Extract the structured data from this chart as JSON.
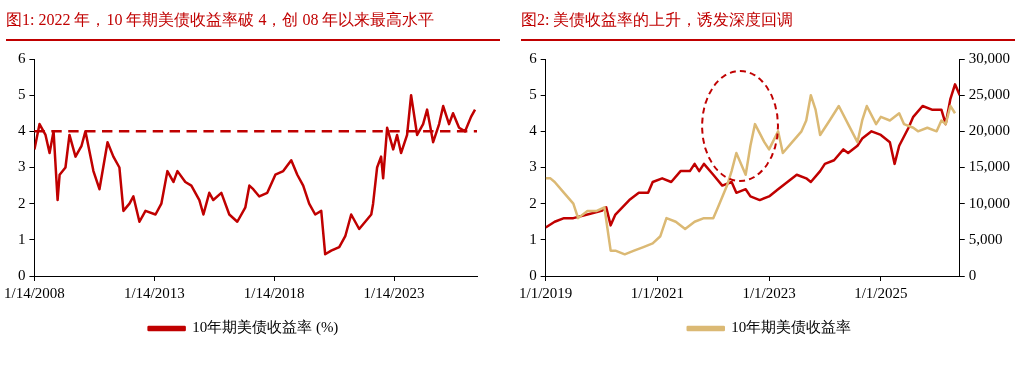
{
  "chart_data": [
    {
      "type": "line",
      "title": "图1:  2022 年，10 年期美债收益率破 4，创 08 年以来最高水平",
      "xlim": [
        "2008-01-14",
        "2026-07-01"
      ],
      "xticks": [
        {
          "value": "2008-01-14",
          "label": "1/14/2008"
        },
        {
          "value": "2013-01-14",
          "label": "1/14/2013"
        },
        {
          "value": "2018-01-14",
          "label": "1/14/2018"
        },
        {
          "value": "2023-01-14",
          "label": "1/14/2023"
        }
      ],
      "ylim": [
        0,
        6
      ],
      "yticks": [
        0,
        1,
        2,
        3,
        4,
        5,
        6
      ],
      "grid": false,
      "legend": "bottom",
      "marker": "none",
      "ref_lines": [
        {
          "axis": "y",
          "value": 4,
          "color": "#c00000",
          "line_style": "dashed"
        }
      ],
      "series": [
        {
          "name": "10年期美债收益率 (%)",
          "color": "#c00000",
          "x": [
            "2008-01-14",
            "2008-04",
            "2008-07",
            "2008-09",
            "2008-11",
            "2009-01",
            "2009-02",
            "2009-05",
            "2009-07",
            "2009-10",
            "2010-01",
            "2010-03",
            "2010-07",
            "2010-10",
            "2011-02",
            "2011-05",
            "2011-08",
            "2011-10",
            "2012-01",
            "2012-03",
            "2012-06",
            "2012-09",
            "2013-02",
            "2013-05",
            "2013-08",
            "2013-11",
            "2014-01",
            "2014-05",
            "2014-08",
            "2014-12",
            "2015-02",
            "2015-05",
            "2015-07",
            "2015-11",
            "2016-03",
            "2016-07",
            "2016-11",
            "2017-01",
            "2017-03",
            "2017-06",
            "2017-10",
            "2018-02",
            "2018-06",
            "2018-10",
            "2019-01",
            "2019-04",
            "2019-07",
            "2019-10",
            "2020-01",
            "2020-03",
            "2020-06",
            "2020-10",
            "2021-01",
            "2021-04",
            "2021-08",
            "2021-11",
            "2022-02",
            "2022-03",
            "2022-05",
            "2022-07",
            "2022-08",
            "2022-10",
            "2023-01",
            "2023-03",
            "2023-05",
            "2023-08",
            "2023-10",
            "2024-01",
            "2024-04",
            "2024-06",
            "2024-09",
            "2024-12",
            "2025-02",
            "2025-05",
            "2025-07",
            "2025-10",
            "2026-01",
            "2026-04",
            "2026-06"
          ],
          "values": [
            3.5,
            4.2,
            3.9,
            3.4,
            4.0,
            2.1,
            2.8,
            3.0,
            3.9,
            3.3,
            3.6,
            4.0,
            2.9,
            2.4,
            3.7,
            3.3,
            3.0,
            1.8,
            2.0,
            2.2,
            1.5,
            1.8,
            1.7,
            2.0,
            2.9,
            2.6,
            2.9,
            2.6,
            2.5,
            2.1,
            1.7,
            2.3,
            2.1,
            2.3,
            1.7,
            1.5,
            1.9,
            2.5,
            2.4,
            2.2,
            2.3,
            2.8,
            2.9,
            3.2,
            2.8,
            2.5,
            2.0,
            1.7,
            1.8,
            0.6,
            0.7,
            0.8,
            1.1,
            1.7,
            1.3,
            1.5,
            1.7,
            2.0,
            3.0,
            3.3,
            2.7,
            4.1,
            3.5,
            3.9,
            3.4,
            3.9,
            5.0,
            3.9,
            4.2,
            4.6,
            3.7,
            4.2,
            4.7,
            4.2,
            4.5,
            4.1,
            4.0,
            4.4,
            4.6
          ]
        }
      ]
    },
    {
      "type": "line",
      "title": "图2:  美债收益率的上升，诱发深度回调",
      "xlim": [
        "2019-01-01",
        "2026-06-01"
      ],
      "xticks": [
        {
          "value": "2019-01-01",
          "label": "1/1/2019"
        },
        {
          "value": "2021-01-01",
          "label": "1/1/2021"
        },
        {
          "value": "2023-01-01",
          "label": "1/1/2023"
        },
        {
          "value": "2025-01-01",
          "label": "1/1/2025"
        }
      ],
      "ylim": [
        0,
        6
      ],
      "yticks": [
        0,
        1,
        2,
        3,
        4,
        5,
        6
      ],
      "y2lim": [
        0,
        30000
      ],
      "y2ticks": [
        0,
        {
          "value": 5000,
          "label": "5,000"
        },
        {
          "value": 10000,
          "label": "10,000"
        },
        {
          "value": 15000,
          "label": "15,000"
        },
        {
          "value": 20000,
          "label": "20,000"
        },
        {
          "value": 25000,
          "label": "25,000"
        },
        {
          "value": 30000,
          "label": "30,000"
        }
      ],
      "grid": false,
      "legend": "bottom",
      "marker": "none",
      "series": [
        {
          "name": "10年期美债收益率",
          "color": "#dbb974",
          "x": [
            "2019-01-01",
            "2019-02",
            "2019-03",
            "2019-05",
            "2019-07",
            "2019-08",
            "2019-10",
            "2019-12",
            "2020-01-20",
            "2020-03",
            "2020-04",
            "2020-06",
            "2020-08",
            "2020-10",
            "2020-12",
            "2021-01-20",
            "2021-03",
            "2021-05",
            "2021-07",
            "2021-09",
            "2021-11",
            "2022-01",
            "2022-02",
            "2022-04",
            "2022-05",
            "2022-06",
            "2022-08",
            "2022-09",
            "2022-10",
            "2022-12",
            "2023-01",
            "2023-03",
            "2023-04",
            "2023-06",
            "2023-08",
            "2023-09",
            "2023-10",
            "2023-11",
            "2023-12",
            "2024-02",
            "2024-04",
            "2024-06",
            "2024-08",
            "2024-09",
            "2024-10",
            "2024-12",
            "2025-01",
            "2025-03",
            "2025-05",
            "2025-06",
            "2025-08",
            "2025-09",
            "2025-11",
            "2026-01",
            "2026-02",
            "2026-03",
            "2026-04",
            "2026-05"
          ],
          "values": [
            2.7,
            2.7,
            2.6,
            2.3,
            2.0,
            1.6,
            1.8,
            1.8,
            1.9,
            0.7,
            0.7,
            0.6,
            0.7,
            0.8,
            0.9,
            1.1,
            1.6,
            1.5,
            1.3,
            1.5,
            1.6,
            1.6,
            1.9,
            2.5,
            2.9,
            3.4,
            2.8,
            3.6,
            4.2,
            3.7,
            3.5,
            4.0,
            3.4,
            3.7,
            4.0,
            4.3,
            5.0,
            4.6,
            3.9,
            4.3,
            4.7,
            4.2,
            3.7,
            4.3,
            4.7,
            4.2,
            4.4,
            4.3,
            4.5,
            4.2,
            4.1,
            4.0,
            4.1,
            4.0,
            4.3,
            4.2,
            4.7,
            4.5
          ]
        },
        {
          "color": "#c00000",
          "axis": "y2",
          "x": [
            "2019-01-01",
            "2019-03",
            "2019-05",
            "2019-07",
            "2019-10",
            "2020-01",
            "2020-02",
            "2020-03",
            "2020-04",
            "2020-07",
            "2020-09",
            "2020-11",
            "2020-12",
            "2021-02",
            "2021-04",
            "2021-06",
            "2021-08",
            "2021-09",
            "2021-10",
            "2021-11",
            "2022-01",
            "2022-03",
            "2022-05",
            "2022-06",
            "2022-08",
            "2022-09",
            "2022-11",
            "2023-01",
            "2023-03",
            "2023-05",
            "2023-07",
            "2023-09",
            "2023-10",
            "2023-12",
            "2024-01",
            "2024-03",
            "2024-05",
            "2024-06",
            "2024-08",
            "2024-09",
            "2024-11",
            "2025-01",
            "2025-03",
            "2025-04",
            "2025-05",
            "2025-07",
            "2025-08",
            "2025-10",
            "2025-12",
            "2026-02",
            "2026-03",
            "2026-04",
            "2026-05",
            "2026-06-01"
          ],
          "values": [
            6700,
            7500,
            8000,
            8000,
            8500,
            9000,
            9500,
            7000,
            8500,
            10500,
            11500,
            11500,
            13000,
            13500,
            13000,
            14500,
            14500,
            15500,
            14500,
            15500,
            14000,
            12500,
            13000,
            11500,
            12000,
            11000,
            10500,
            11000,
            12000,
            13000,
            14000,
            13500,
            13000,
            14500,
            15500,
            16000,
            17500,
            17000,
            18000,
            19000,
            20000,
            19500,
            18500,
            15500,
            18000,
            20500,
            22000,
            23500,
            23000,
            23000,
            21000,
            24500,
            26500,
            25000
          ]
        }
      ]
    }
  ]
}
